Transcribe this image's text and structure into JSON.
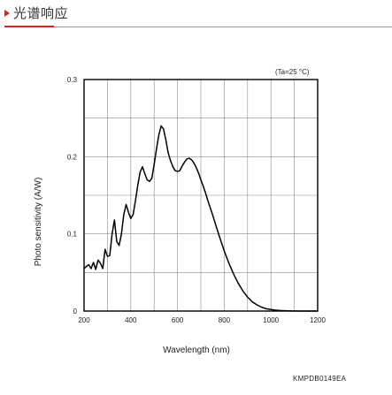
{
  "header": {
    "title": "光谱响应",
    "accent_color": "#d9261c",
    "marker_icon": "triangle-right-icon"
  },
  "chart_data": {
    "type": "line",
    "title": "",
    "condition_note": "(Ta=25 °C)",
    "xlabel": "Wavelength (nm)",
    "ylabel": "Photo sensitivity (A/W)",
    "xlim": [
      200,
      1200
    ],
    "ylim": [
      0,
      0.3
    ],
    "x_ticks": [
      200,
      400,
      600,
      800,
      1000,
      1200
    ],
    "x_tick_labels": [
      "200",
      "400",
      "600",
      "800",
      "1000",
      "1200"
    ],
    "y_ticks": [
      0,
      0.1,
      0.2,
      0.3
    ],
    "y_tick_labels": [
      "0",
      "0.1",
      "0.2",
      "0.3"
    ],
    "grid": true,
    "legend": "none",
    "series": [
      {
        "color": "#000000",
        "x": [
          200,
          210,
          220,
          230,
          240,
          250,
          260,
          270,
          280,
          290,
          300,
          310,
          320,
          330,
          340,
          350,
          360,
          370,
          380,
          390,
          400,
          410,
          420,
          430,
          440,
          450,
          460,
          470,
          480,
          490,
          500,
          510,
          520,
          530,
          540,
          550,
          560,
          570,
          580,
          590,
          600,
          610,
          620,
          630,
          640,
          650,
          660,
          670,
          680,
          690,
          700,
          710,
          720,
          730,
          740,
          750,
          760,
          780,
          800,
          820,
          840,
          860,
          880,
          900,
          920,
          940,
          960,
          980,
          1000,
          1020,
          1040,
          1060,
          1080,
          1100,
          1120,
          1140,
          1160,
          1180,
          1200
        ],
        "y": [
          0.055,
          0.058,
          0.06,
          0.055,
          0.063,
          0.054,
          0.066,
          0.062,
          0.055,
          0.08,
          0.071,
          0.072,
          0.1,
          0.118,
          0.09,
          0.085,
          0.1,
          0.125,
          0.138,
          0.128,
          0.12,
          0.125,
          0.143,
          0.163,
          0.18,
          0.187,
          0.178,
          0.17,
          0.168,
          0.172,
          0.19,
          0.21,
          0.228,
          0.24,
          0.236,
          0.222,
          0.205,
          0.195,
          0.187,
          0.182,
          0.181,
          0.182,
          0.188,
          0.193,
          0.197,
          0.198,
          0.196,
          0.192,
          0.186,
          0.179,
          0.17,
          0.162,
          0.153,
          0.143,
          0.134,
          0.125,
          0.115,
          0.096,
          0.078,
          0.062,
          0.048,
          0.036,
          0.026,
          0.018,
          0.012,
          0.008,
          0.005,
          0.003,
          0.002,
          0.0012,
          0.0007,
          0.0004,
          0.0002,
          0.0001,
          5e-05,
          2e-05,
          0.0,
          0.0,
          0.0
        ]
      }
    ]
  },
  "footer": {
    "doc_code": "KMPDB0149EA"
  }
}
